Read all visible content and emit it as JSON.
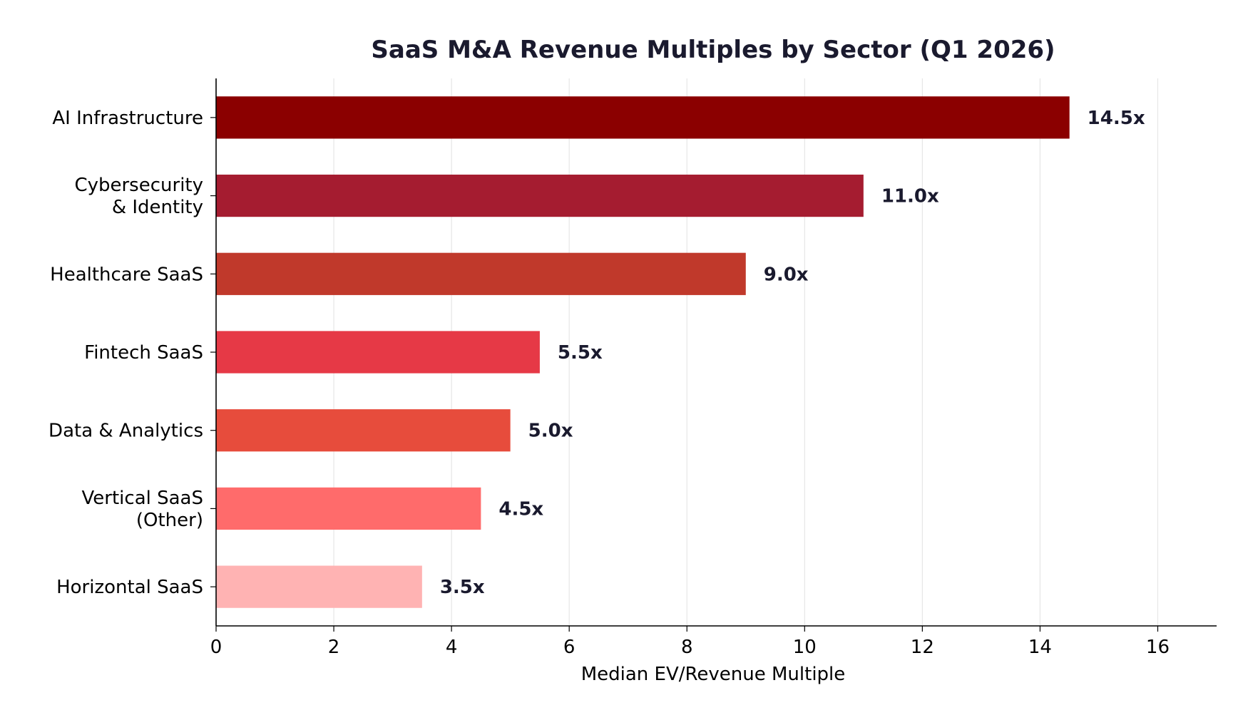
{
  "chart_data": {
    "type": "bar",
    "orientation": "horizontal",
    "title": "SaaS M&A Revenue Multiples by Sector (Q1 2026)",
    "xlabel": "Median EV/Revenue Multiple",
    "ylabel": "",
    "xlim": [
      0,
      17
    ],
    "xticks": [
      0,
      2,
      4,
      6,
      8,
      10,
      12,
      14,
      16
    ],
    "grid": "vertical",
    "categories": [
      [
        "AI Infrastructure"
      ],
      [
        "Cybersecurity",
        "& Identity"
      ],
      [
        "Healthcare SaaS"
      ],
      [
        "Fintech SaaS"
      ],
      [
        "Data & Analytics"
      ],
      [
        "Vertical SaaS",
        "(Other)"
      ],
      [
        "Horizontal SaaS"
      ]
    ],
    "values": [
      14.5,
      11.0,
      9.0,
      5.5,
      5.0,
      4.5,
      3.5
    ],
    "value_labels": [
      "14.5x",
      "11.0x",
      "9.0x",
      "5.5x",
      "5.0x",
      "4.5x",
      "3.5x"
    ],
    "colors": [
      "#8b0000",
      "#a51c30",
      "#c0392b",
      "#e63946",
      "#e74c3c",
      "#ff6b6b",
      "#ffb3b3"
    ]
  }
}
